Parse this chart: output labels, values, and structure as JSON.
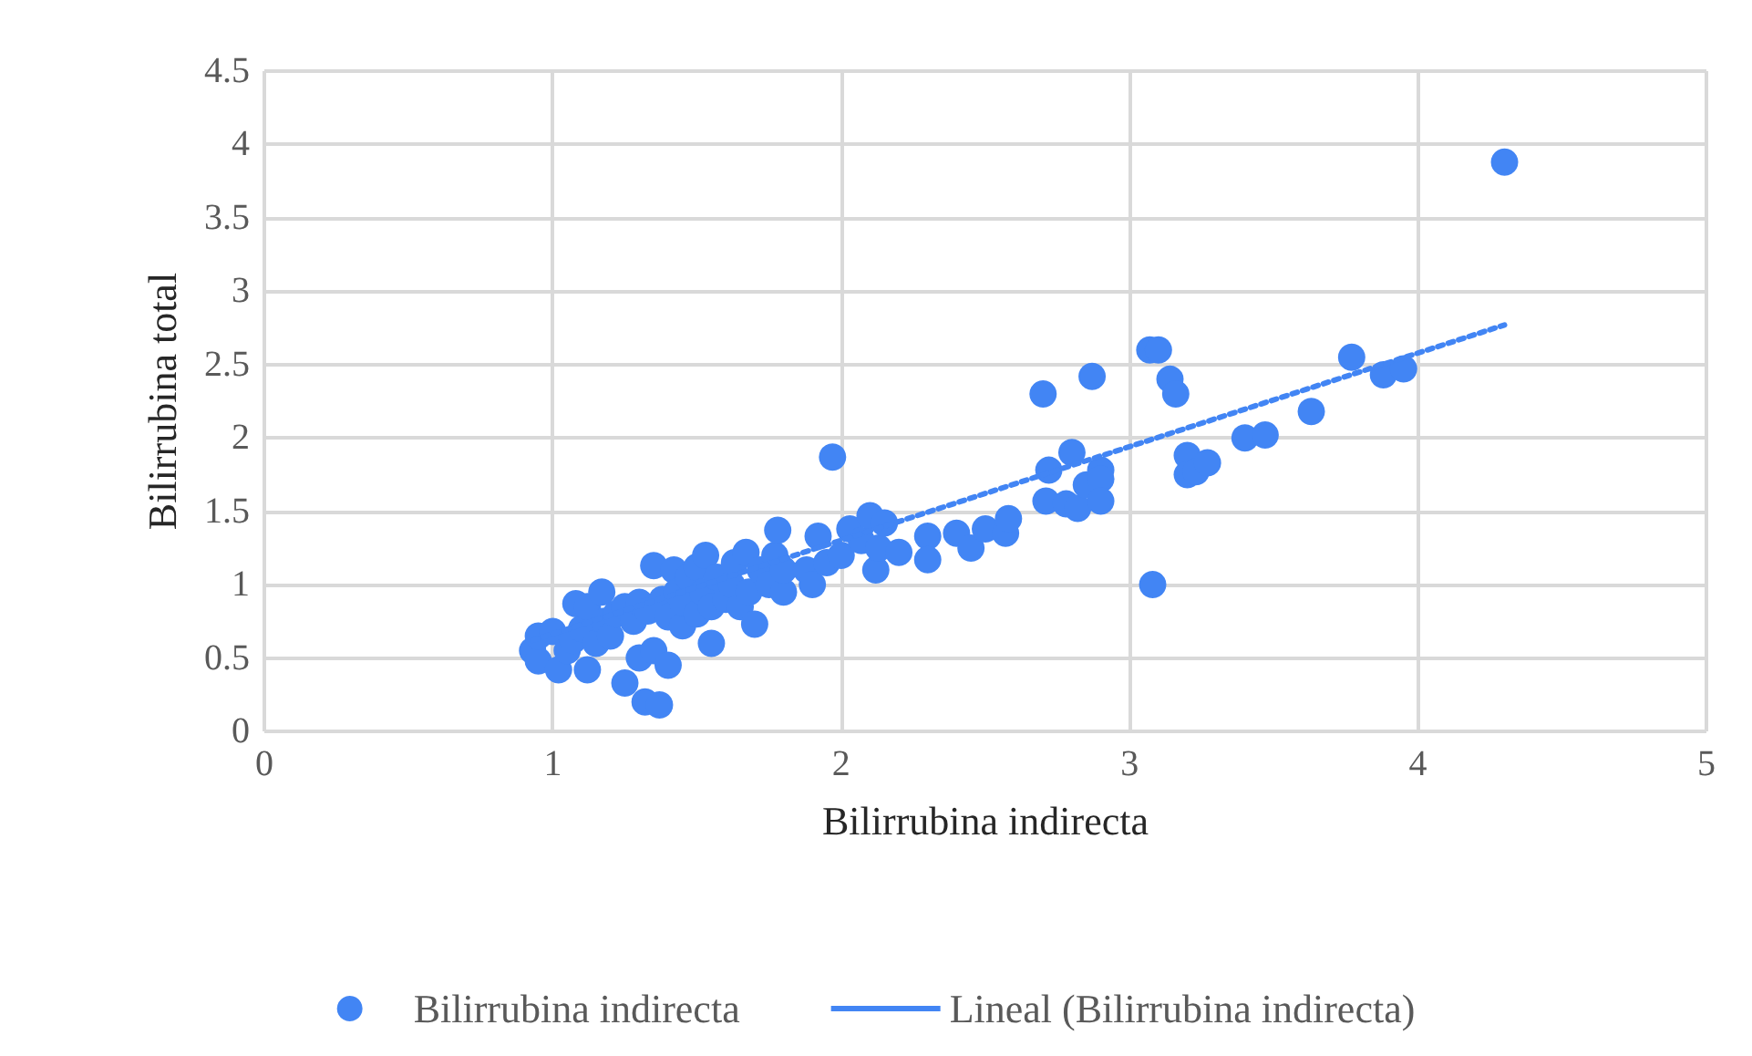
{
  "chart_data": {
    "type": "scatter",
    "xlabel": "Bilirrubina indirecta",
    "ylabel": "Bilirrubina total",
    "xlim": [
      0,
      5
    ],
    "xticks": [
      0,
      1,
      2,
      3,
      4,
      5
    ],
    "ylim": [
      0,
      4.5
    ],
    "yticks": [
      0,
      0.5,
      1,
      1.5,
      2,
      2.5,
      3,
      3.5,
      4,
      4.5
    ],
    "grid": true,
    "legend": "bottom",
    "marker": "circle",
    "series": [
      {
        "name": "Bilirrubina indirecta",
        "color": "#4285f4",
        "x": [
          0.93,
          0.95,
          0.95,
          1.0,
          1.02,
          1.05,
          1.07,
          1.08,
          1.1,
          1.12,
          1.12,
          1.15,
          1.17,
          1.18,
          1.2,
          1.22,
          1.25,
          1.25,
          1.28,
          1.3,
          1.3,
          1.32,
          1.33,
          1.35,
          1.35,
          1.37,
          1.38,
          1.4,
          1.4,
          1.42,
          1.43,
          1.45,
          1.45,
          1.47,
          1.5,
          1.5,
          1.52,
          1.53,
          1.55,
          1.55,
          1.57,
          1.6,
          1.62,
          1.63,
          1.65,
          1.67,
          1.68,
          1.7,
          1.72,
          1.75,
          1.77,
          1.78,
          1.8,
          1.8,
          1.88,
          1.9,
          1.92,
          1.95,
          1.97,
          2.0,
          2.03,
          2.07,
          2.1,
          2.12,
          2.13,
          2.15,
          2.2,
          2.3,
          2.3,
          2.4,
          2.45,
          2.5,
          2.57,
          2.58,
          2.7,
          2.71,
          2.72,
          2.78,
          2.8,
          2.82,
          2.85,
          2.87,
          2.9,
          2.9,
          2.9,
          3.07,
          3.1,
          3.08,
          3.14,
          3.16,
          3.2,
          3.2,
          3.23,
          3.27,
          3.4,
          3.47,
          3.63,
          3.77,
          3.88,
          3.95,
          4.3
        ],
        "values": [
          0.55,
          0.48,
          0.65,
          0.68,
          0.42,
          0.55,
          0.62,
          0.87,
          0.7,
          0.42,
          0.85,
          0.6,
          0.95,
          0.75,
          0.65,
          0.8,
          0.85,
          0.33,
          0.75,
          0.5,
          0.88,
          0.2,
          0.82,
          0.55,
          1.13,
          0.18,
          0.9,
          0.45,
          0.78,
          1.1,
          0.95,
          0.72,
          0.88,
          1.05,
          0.8,
          1.12,
          0.95,
          1.2,
          0.6,
          0.85,
          1.05,
          0.9,
          1.0,
          1.15,
          0.85,
          1.22,
          0.95,
          0.73,
          1.1,
          1.0,
          1.2,
          1.37,
          0.95,
          1.1,
          1.1,
          1.0,
          1.33,
          1.15,
          1.87,
          1.2,
          1.38,
          1.3,
          1.47,
          1.1,
          1.25,
          1.42,
          1.22,
          1.33,
          1.17,
          1.35,
          1.25,
          1.38,
          1.35,
          1.45,
          2.3,
          1.57,
          1.78,
          1.55,
          1.9,
          1.52,
          1.68,
          2.42,
          1.78,
          1.72,
          1.57,
          2.6,
          2.6,
          1.0,
          2.4,
          2.3,
          1.88,
          1.75,
          1.77,
          1.83,
          2.0,
          2.02,
          2.18,
          2.55,
          2.43,
          2.47,
          3.88
        ]
      },
      {
        "name": "Lineal (Bilirrubina indirecta)",
        "type": "line",
        "color": "#4285f4",
        "line_style": "dotted",
        "marker": "none",
        "x": [
          0.93,
          4.3
        ],
        "values": [
          0.62,
          2.77
        ]
      }
    ]
  }
}
